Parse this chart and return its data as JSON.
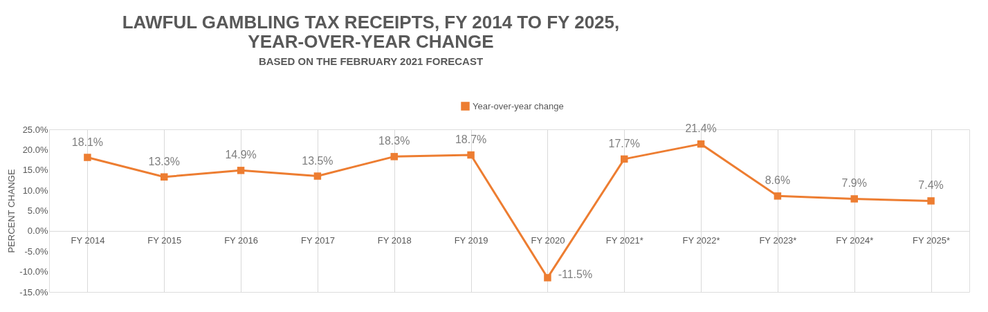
{
  "chart_data": {
    "type": "line",
    "title": [
      "LAWFUL GAMBLING TAX RECEIPTS, FY 2014 TO FY 2025,",
      "YEAR-OVER-YEAR CHANGE"
    ],
    "subtitle": "BASED ON THE FEBRUARY 2021 FORECAST",
    "ylabel": "PERCENT CHANGE",
    "categories": [
      "FY 2014",
      "FY 2015",
      "FY 2016",
      "FY 2017",
      "FY 2018",
      "FY 2019",
      "FY 2020",
      "FY 2021*",
      "FY 2022*",
      "FY 2023*",
      "FY 2024*",
      "FY 2025*"
    ],
    "series": [
      {
        "name": "Year-over-year change",
        "color": "#ed7d31",
        "values": [
          18.1,
          13.3,
          14.9,
          13.5,
          18.3,
          18.7,
          -11.5,
          17.7,
          21.4,
          8.6,
          7.9,
          7.4
        ],
        "value_labels": [
          "18.1%",
          "13.3%",
          "14.9%",
          "13.5%",
          "18.3%",
          "18.7%",
          "-11.5%",
          "17.7%",
          "21.4%",
          "8.6%",
          "7.9%",
          "7.4%"
        ]
      }
    ],
    "ylim": [
      -15,
      25
    ],
    "yticks": [
      {
        "value": -15,
        "label": "-15.0%"
      },
      {
        "value": -10,
        "label": "-10.0%"
      },
      {
        "value": -5,
        "label": "-5.0%"
      },
      {
        "value": 0,
        "label": "0.0%"
      },
      {
        "value": 5,
        "label": "5.0%"
      },
      {
        "value": 10,
        "label": "10.0%"
      },
      {
        "value": 15,
        "label": "15.0%"
      },
      {
        "value": 20,
        "label": "20.0%"
      },
      {
        "value": 25,
        "label": "25.0%"
      }
    ],
    "grid": "x",
    "legend": "top",
    "marker": "square",
    "line_style": "solid"
  }
}
